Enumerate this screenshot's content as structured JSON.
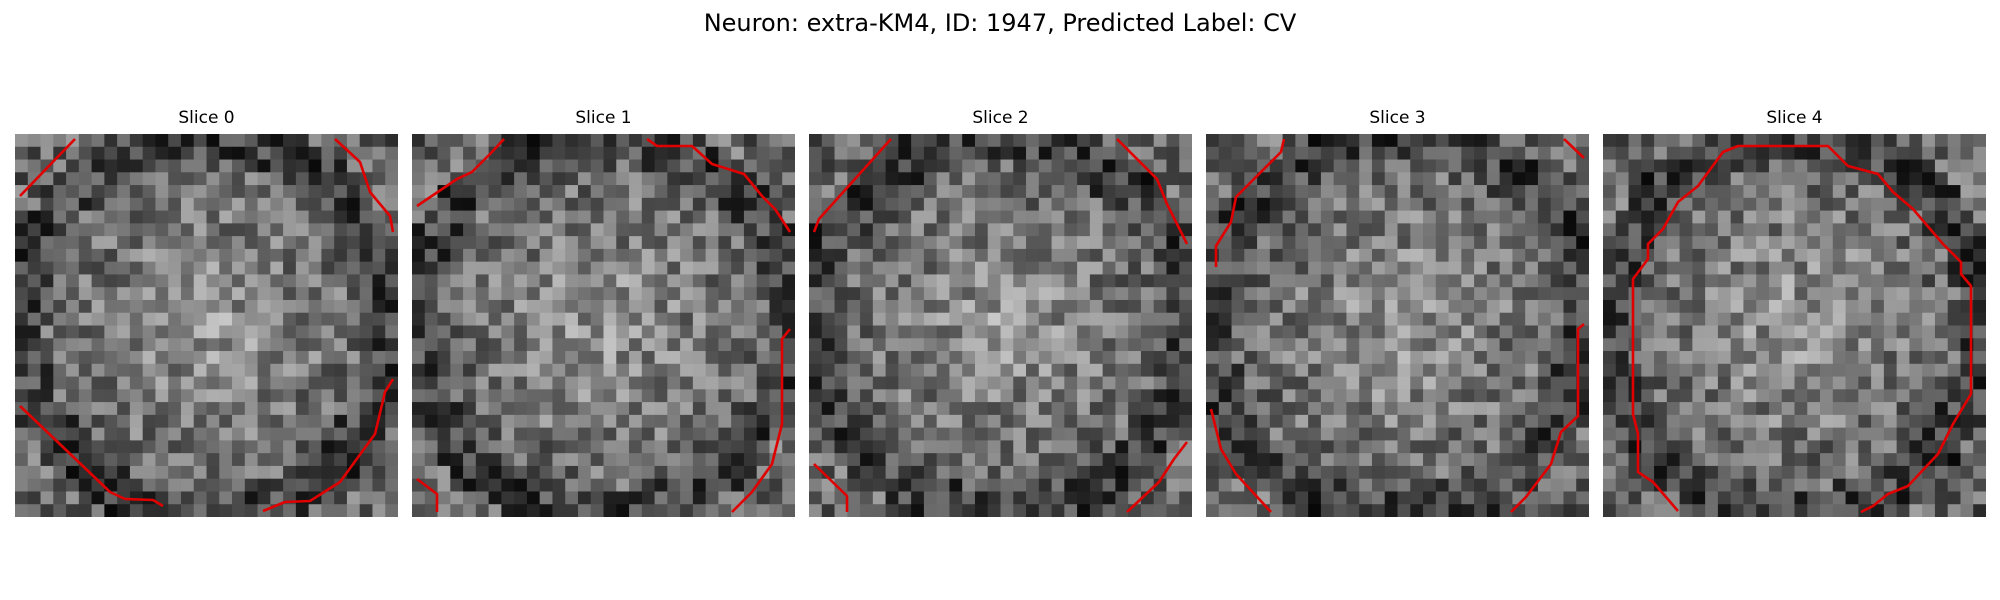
{
  "figure": {
    "title": "Neuron: extra-KM4, ID: 1947, Predicted Label: CV"
  },
  "colors": {
    "contour": "#e00000",
    "colormap": "gray"
  },
  "slices": [
    {
      "label": "Slice 0",
      "contour_segments": 4
    },
    {
      "label": "Slice 1",
      "contour_segments": 4
    },
    {
      "label": "Slice 2",
      "contour_segments": 4
    },
    {
      "label": "Slice 3",
      "contour_segments": 4
    },
    {
      "label": "Slice 4",
      "contour_segments": 1
    }
  ]
}
